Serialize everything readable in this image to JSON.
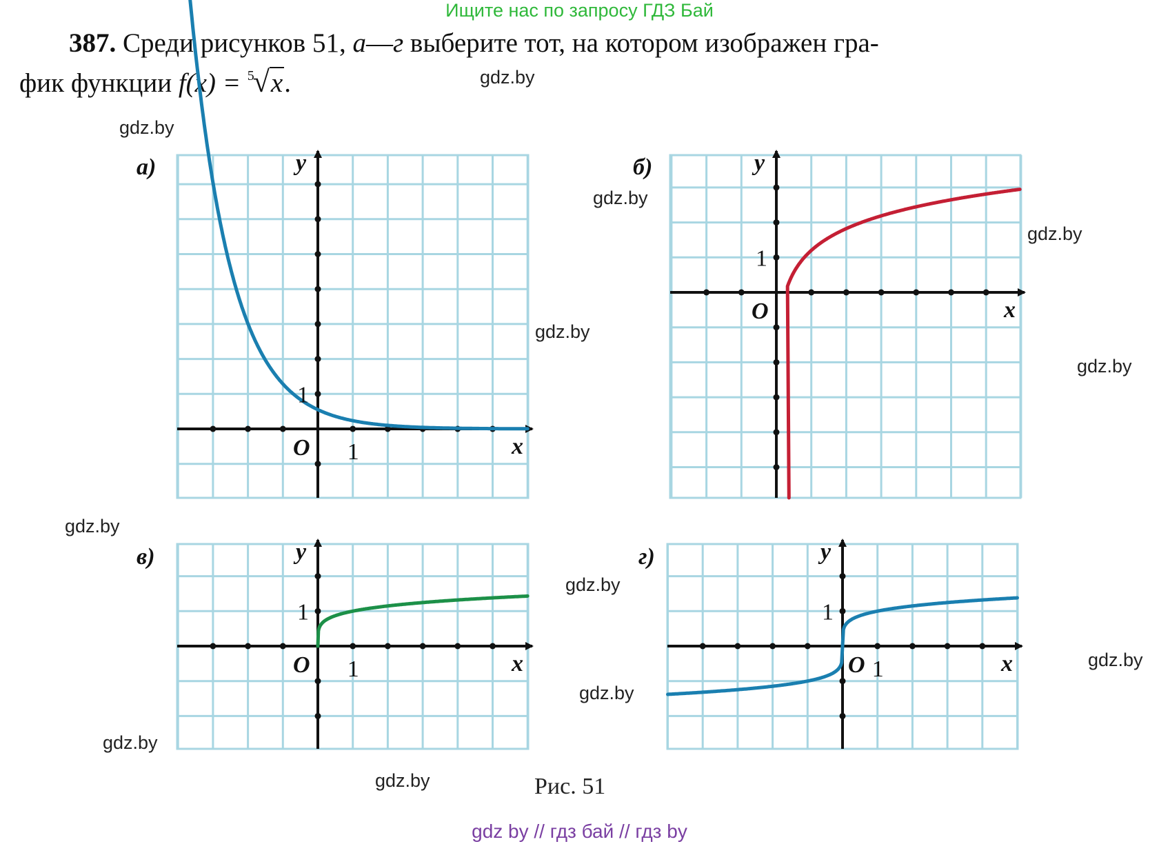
{
  "banner": "Ищите нас по запросу ГДЗ Бай",
  "problem": {
    "number": "387.",
    "text_line1_a": "Среди рисунков 51, ",
    "range_a": "а",
    "range_dash": "—",
    "range_b": "г",
    "text_line1_b": " выберите тот, на котором изображен гра-",
    "text_line2": "фик функции ",
    "formula_lhs": "f(x) = ",
    "root_index": "5",
    "root_symbol": "√",
    "root_radicand": "x",
    "formula_end": "."
  },
  "watermark": "gdz.by",
  "caption": "Рис. 51",
  "footer": "gdz by  //  гдз бай  //  гдз by",
  "panels": [
    {
      "label": "а)",
      "color": "#1a7fb0",
      "function": "exponential decay"
    },
    {
      "label": "б)",
      "color": "#c41f34",
      "function": "logarithm"
    },
    {
      "label": "в)",
      "color": "#1c9048",
      "function": "root x>=0"
    },
    {
      "label": "г)",
      "color": "#1a7fb0",
      "function": "odd root"
    }
  ],
  "axis_labels": {
    "x": "x",
    "y": "y",
    "origin": "O",
    "one": "1"
  }
}
